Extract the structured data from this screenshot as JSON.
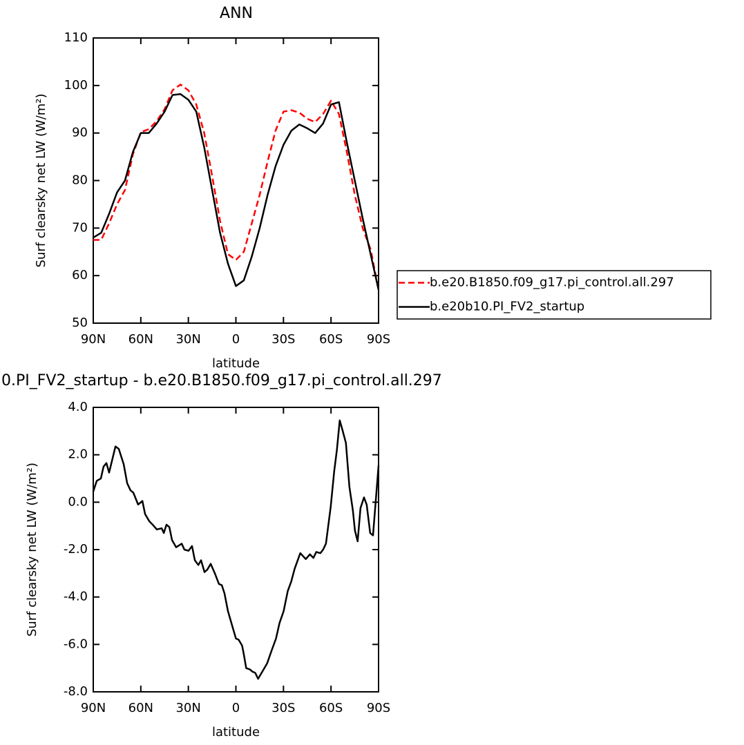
{
  "chart_data": [
    {
      "type": "line",
      "title": "ANN",
      "xlabel": "latitude",
      "ylabel": "Surf clearsky net LW (W/m²)",
      "x": [
        90,
        85,
        80,
        75,
        70,
        65,
        60,
        55,
        50,
        45,
        40,
        35,
        30,
        25,
        20,
        15,
        10,
        5,
        0,
        -5,
        -10,
        -15,
        -20,
        -25,
        -30,
        -35,
        -40,
        -45,
        -50,
        -55,
        -60,
        -65,
        -70,
        -75,
        -80,
        -85,
        -90
      ],
      "series": [
        {
          "name": "b.e20.B1850.f09_g17.pi_control.all.297",
          "color": "#ff0000",
          "dashed": true,
          "values": [
            67.5,
            67.5,
            71,
            75,
            78,
            85.5,
            90.2,
            90.8,
            92.5,
            95,
            99,
            100.2,
            99,
            96,
            90,
            81,
            71.5,
            64.5,
            63.3,
            65,
            71,
            77,
            84,
            90.5,
            94.5,
            94.8,
            94.3,
            93,
            92.3,
            94,
            96.8,
            94,
            86,
            77,
            70,
            65.5,
            57
          ]
        },
        {
          "name": "b.e20b10.PI_FV2_startup",
          "color": "#000000",
          "dashed": false,
          "values": [
            68,
            69,
            73,
            77.5,
            80,
            86,
            90,
            90,
            92,
            94.5,
            98,
            98.2,
            97,
            94.5,
            87,
            78,
            69,
            62.5,
            57.8,
            59,
            64,
            70,
            77,
            83,
            87.5,
            90.5,
            91.8,
            91,
            90,
            92,
            96,
            96.5,
            88,
            80,
            72,
            64.5,
            57
          ]
        }
      ],
      "xlim": [
        90,
        -90
      ],
      "xticks": [
        {
          "value": 90,
          "label": "90N"
        },
        {
          "value": 60,
          "label": "60N"
        },
        {
          "value": 30,
          "label": "30N"
        },
        0,
        {
          "value": -30,
          "label": "30S"
        },
        {
          "value": -60,
          "label": "60S"
        },
        {
          "value": -90,
          "label": "90S"
        }
      ],
      "ylim": [
        50,
        110
      ],
      "yticks": [
        50,
        60,
        70,
        80,
        90,
        100,
        110
      ],
      "legend": "right"
    },
    {
      "type": "line",
      "title": "0.PI_FV2_startup - b.e20.B1850.f09_g17.pi_control.all.297",
      "xlabel": "latitude",
      "ylabel": "Surf clearsky net LW (W/m²)",
      "x": [
        90,
        87.8,
        85.2,
        83.5,
        81.7,
        80,
        76,
        73.9,
        70.8,
        68.6,
        66.5,
        64.7,
        61.7,
        59,
        57.3,
        54.7,
        52.5,
        49.9,
        46.8,
        45.5,
        43.8,
        42,
        40.3,
        37.7,
        34.2,
        32.5,
        29.9,
        27.7,
        25.9,
        23.7,
        22,
        19.8,
        18.1,
        15.9,
        13.3,
        10.7,
        8.9,
        7.2,
        5,
        2.4,
        0,
        -1.7,
        -3.9,
        -4.8,
        -6.5,
        -8.7,
        -10.5,
        -12.2,
        -14,
        -16.2,
        -19.7,
        -22.3,
        -25.3,
        -27.5,
        -30.1,
        -32.7,
        -34.9,
        -37.1,
        -40.6,
        -44.1,
        -46.7,
        -48.9,
        -50.7,
        -53.3,
        -55,
        -56.8,
        -59.8,
        -62,
        -63.7,
        -65.5,
        -67.2,
        -69.4,
        -71.6,
        -73.8,
        -75.1,
        -76.8,
        -78.6,
        -80.8,
        -82.5,
        -84.7,
        -86.5,
        -90
      ],
      "values": [
        0.45,
        0.9,
        1.0,
        1.5,
        1.65,
        1.25,
        2.35,
        2.25,
        1.6,
        0.8,
        0.5,
        0.4,
        -0.1,
        0.05,
        -0.5,
        -0.8,
        -0.95,
        -1.15,
        -1.1,
        -1.3,
        -0.95,
        -1.05,
        -1.6,
        -1.9,
        -1.75,
        -2.0,
        -2.05,
        -1.85,
        -2.45,
        -2.65,
        -2.45,
        -2.95,
        -2.85,
        -2.6,
        -3.0,
        -3.45,
        -3.5,
        -3.85,
        -4.6,
        -5.2,
        -5.75,
        -5.8,
        -6.05,
        -6.35,
        -7.0,
        -7.05,
        -7.15,
        -7.2,
        -7.45,
        -7.2,
        -6.8,
        -6.3,
        -5.75,
        -5.1,
        -4.6,
        -3.75,
        -3.35,
        -2.8,
        -2.15,
        -2.4,
        -2.2,
        -2.35,
        -2.1,
        -2.15,
        -2.0,
        -1.75,
        -0.2,
        1.3,
        2.2,
        3.45,
        3.05,
        2.5,
        0.65,
        -0.35,
        -1.2,
        -1.65,
        -0.25,
        0.2,
        -0.1,
        -1.3,
        -1.4,
        1.55
      ],
      "color": "#000000",
      "xlim": [
        90,
        -90
      ],
      "xticks": [
        {
          "value": 90,
          "label": "90N"
        },
        {
          "value": 60,
          "label": "60N"
        },
        {
          "value": 30,
          "label": "30N"
        },
        0,
        {
          "value": -30,
          "label": "30S"
        },
        {
          "value": -60,
          "label": "60S"
        },
        {
          "value": -90,
          "label": "90S"
        }
      ],
      "ylim": [
        -8,
        4
      ],
      "yticks": [
        {
          "value": -8,
          "label": "-8.0"
        },
        {
          "value": -6,
          "label": "-6.0"
        },
        {
          "value": -4,
          "label": "-4.0"
        },
        {
          "value": -2,
          "label": "-2.0"
        },
        {
          "value": 0,
          "label": "0.0"
        },
        {
          "value": 2,
          "label": "2.0"
        },
        {
          "value": 4,
          "label": "4.0"
        }
      ]
    }
  ]
}
